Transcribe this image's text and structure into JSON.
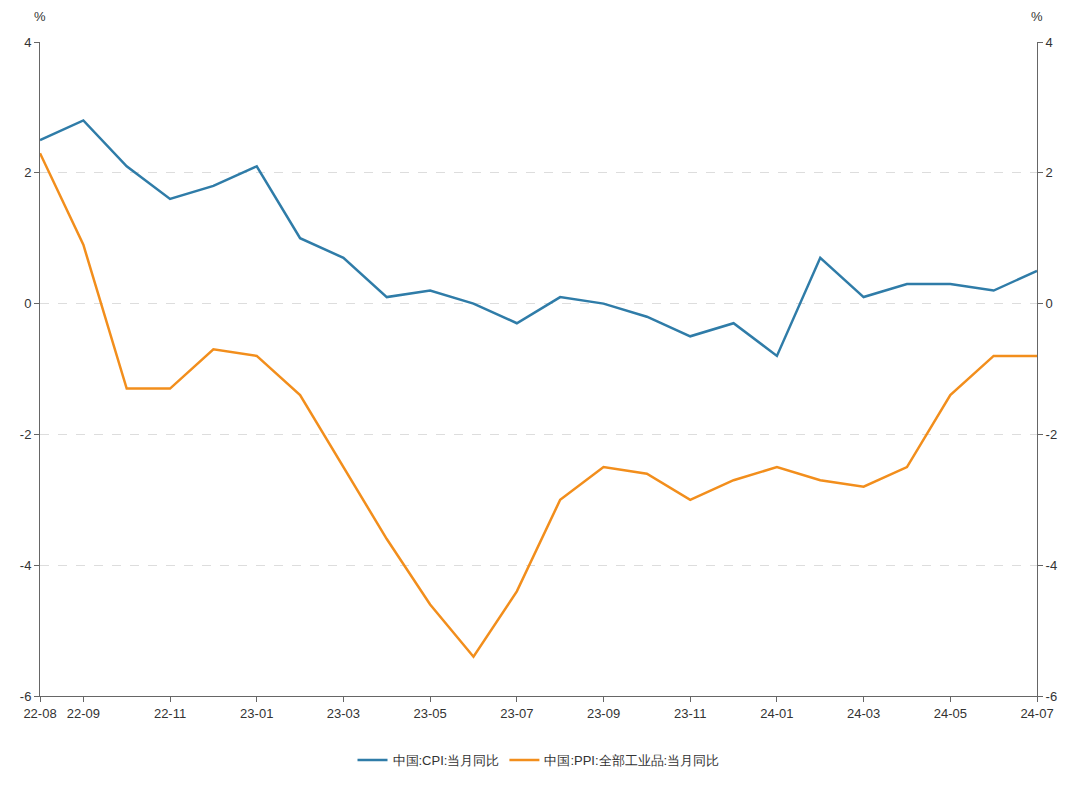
{
  "chart_data": {
    "type": "line",
    "categories": [
      "22-08",
      "22-09",
      null,
      "22-11",
      null,
      "23-01",
      null,
      "23-03",
      null,
      "23-05",
      null,
      "23-07",
      null,
      "23-09",
      null,
      "23-11",
      null,
      "24-01",
      null,
      "24-03",
      null,
      "24-05",
      null,
      "24-07"
    ],
    "series": [
      {
        "name": "中国:CPI:当月同比",
        "color": "#2f7ca8",
        "values": [
          2.5,
          2.8,
          2.1,
          1.6,
          1.8,
          2.1,
          1.0,
          0.7,
          0.1,
          0.2,
          0.0,
          -0.3,
          0.1,
          0.0,
          -0.2,
          -0.5,
          -0.3,
          -0.8,
          0.7,
          0.1,
          0.3,
          0.3,
          0.2,
          0.5
        ]
      },
      {
        "name": "中国:PPI:全部工业品:当月同比",
        "color": "#f28e1c",
        "axis": "y2",
        "values": [
          2.3,
          0.9,
          -1.3,
          -1.3,
          -0.7,
          -0.8,
          -1.4,
          -2.5,
          -3.6,
          -4.6,
          -5.4,
          -4.4,
          -3.0,
          -2.5,
          -2.6,
          -3.0,
          -2.7,
          -2.5,
          -2.7,
          -2.8,
          -2.5,
          -1.4,
          -0.8,
          -0.8
        ]
      }
    ],
    "ylabel": "%",
    "y2label": "%",
    "ylim": [
      -6,
      4
    ],
    "yticks": [
      -6,
      -4,
      -2,
      0,
      2,
      4
    ],
    "y2lim": [
      -6,
      4
    ],
    "y2ticks": [
      -6,
      -4,
      -2,
      0,
      2,
      4
    ],
    "grid": true,
    "legend": "bottom"
  }
}
